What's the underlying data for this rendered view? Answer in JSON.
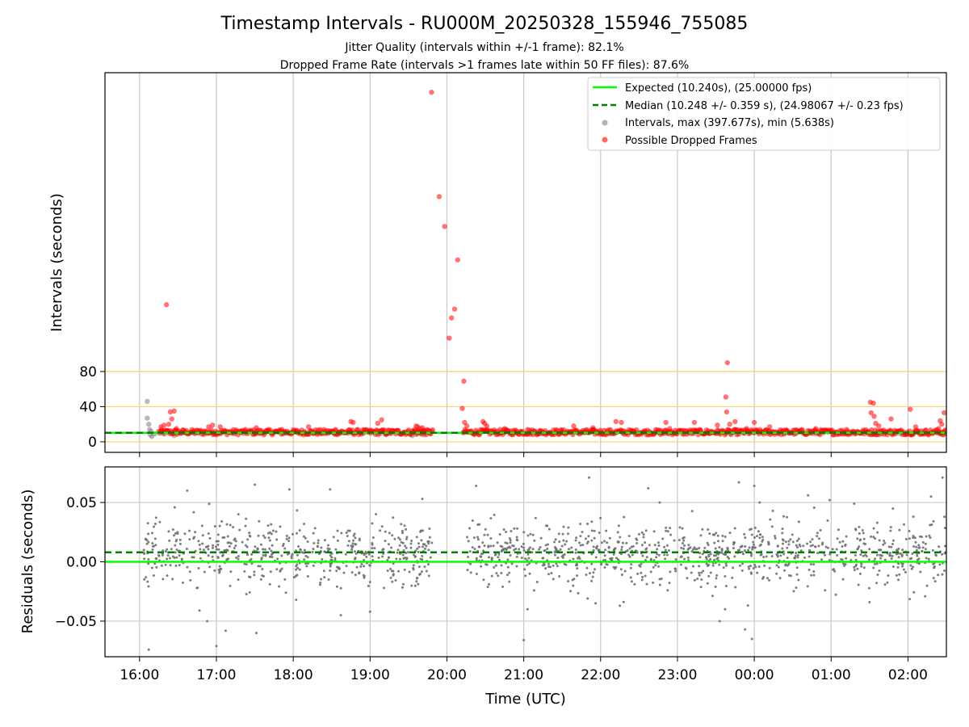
{
  "chart_data": [
    {
      "type": "scatter",
      "panel": "intervals",
      "title": "Timestamp Intervals - RU000M_20250328_155946_755085",
      "subtitle_lines": [
        "Jitter Quality (intervals within +/-1 frame): 82.1%",
        "Dropped Frame Rate (intervals >1 frames late within 50 FF files): 87.6%"
      ],
      "ylabel": "Intervals (seconds)",
      "xlim_hours": [
        15.55,
        26.5
      ],
      "ylim": [
        -12,
        420
      ],
      "yticks": [
        0,
        40,
        80
      ],
      "ytick_labels": [
        "0",
        "40",
        "80"
      ],
      "xticks_hours": [
        16,
        17,
        18,
        19,
        20,
        21,
        22,
        23,
        24,
        25,
        26
      ],
      "reference_lines": [
        0,
        40,
        80
      ],
      "reference_color": "#ffcf60",
      "grid": "vertical",
      "legend_position": "top-right",
      "series": [
        {
          "name": "Expected (10.240s), (25.00000 fps)",
          "kind": "hline",
          "value": 10.24,
          "color": "#00ff00",
          "style": "solid"
        },
        {
          "name": "Median (10.248 +/- 0.359 s), (24.98067 +/- 0.23 fps)",
          "kind": "hline",
          "value": 10.248,
          "color": "#008000",
          "style": "dashed"
        },
        {
          "name": "Intervals, max (397.677s), min (5.638s)",
          "kind": "points",
          "color": "#808080",
          "points": [
            [
              16.1,
              46
            ],
            [
              16.1,
              27
            ],
            [
              16.12,
              20
            ],
            [
              16.13,
              14
            ],
            [
              16.14,
              8
            ],
            [
              16.15,
              12
            ],
            [
              16.16,
              6
            ],
            [
              16.2,
              9
            ],
            [
              16.3,
              10
            ],
            [
              16.45,
              7
            ],
            [
              16.6,
              11
            ],
            [
              17.0,
              10
            ],
            [
              17.5,
              10
            ],
            [
              18.0,
              11
            ],
            [
              18.6,
              9
            ],
            [
              19.2,
              8
            ],
            [
              19.55,
              7
            ],
            [
              19.62,
              9
            ],
            [
              19.7,
              8
            ],
            [
              20.7,
              10
            ],
            [
              21.2,
              9
            ],
            [
              21.5,
              10
            ],
            [
              22.0,
              11
            ],
            [
              22.8,
              9
            ],
            [
              23.4,
              10
            ],
            [
              23.7,
              8
            ],
            [
              24.4,
              10
            ],
            [
              25.2,
              9
            ],
            [
              25.48,
              11
            ],
            [
              25.6,
              8
            ],
            [
              25.9,
              9
            ],
            [
              26.2,
              10
            ],
            [
              26.45,
              8
            ]
          ]
        },
        {
          "name": "Possible Dropped Frames",
          "kind": "points",
          "color": "#ff0000",
          "points": [
            [
              19.8,
              397.7
            ],
            [
              19.9,
              279
            ],
            [
              19.97,
              245
            ],
            [
              20.14,
              207
            ],
            [
              20.1,
              151
            ],
            [
              20.06,
              141
            ],
            [
              20.03,
              118
            ],
            [
              16.35,
              156
            ],
            [
              20.22,
              69
            ],
            [
              20.2,
              38
            ],
            [
              20.23,
              22
            ],
            [
              20.26,
              18
            ],
            [
              16.4,
              34
            ],
            [
              16.45,
              35
            ],
            [
              16.42,
              26
            ],
            [
              16.38,
              20
            ],
            [
              16.32,
              19
            ],
            [
              16.28,
              17
            ],
            [
              16.48,
              15
            ],
            [
              18.75,
              23
            ],
            [
              18.78,
              22
            ],
            [
              19.15,
              25
            ],
            [
              19.1,
              21
            ],
            [
              18.2,
              17
            ],
            [
              17.52,
              16
            ],
            [
              17.05,
              17
            ],
            [
              16.95,
              19
            ],
            [
              16.9,
              17
            ],
            [
              20.47,
              23
            ],
            [
              20.49,
              21
            ],
            [
              20.52,
              18
            ],
            [
              20.75,
              15
            ],
            [
              21.05,
              14
            ],
            [
              21.65,
              18
            ],
            [
              21.9,
              16
            ],
            [
              22.2,
              23
            ],
            [
              22.27,
              22
            ],
            [
              22.9,
              15
            ],
            [
              22.85,
              22
            ],
            [
              23.22,
              22
            ],
            [
              23.52,
              19
            ],
            [
              23.65,
              90
            ],
            [
              23.63,
              51
            ],
            [
              23.64,
              34
            ],
            [
              23.68,
              20
            ],
            [
              23.75,
              23
            ],
            [
              23.9,
              15
            ],
            [
              24.0,
              22
            ],
            [
              24.2,
              17
            ],
            [
              24.8,
              15
            ],
            [
              25.2,
              14
            ],
            [
              25.51,
              45
            ],
            [
              25.55,
              44
            ],
            [
              25.52,
              33
            ],
            [
              25.56,
              29
            ],
            [
              25.58,
              21
            ],
            [
              25.62,
              18
            ],
            [
              25.78,
              26
            ],
            [
              26.03,
              37
            ],
            [
              26.1,
              17
            ],
            [
              26.42,
              24
            ],
            [
              26.47,
              33
            ],
            [
              26.44,
              20
            ],
            [
              26.4,
              15
            ],
            [
              19.6,
              18
            ],
            [
              19.62,
              17
            ],
            [
              19.65,
              15
            ],
            [
              19.58,
              14
            ],
            [
              19.68,
              16
            ],
            [
              19.7,
              13
            ],
            [
              18.55,
              14
            ],
            [
              17.85,
              14
            ]
          ],
          "band": {
            "from": 16.25,
            "to": 26.5,
            "low": 8,
            "high": 14,
            "gap": [
              19.82,
              20.2
            ]
          }
        }
      ]
    },
    {
      "type": "scatter",
      "panel": "residuals",
      "xlabel": "Time (UTC)",
      "ylabel": "Residuals (seconds)",
      "xlim_hours": [
        15.55,
        26.5
      ],
      "ylim": [
        -0.08,
        0.08
      ],
      "yticks": [
        -0.05,
        0,
        0.05
      ],
      "ytick_labels": [
        "−0.05",
        "0.00",
        "0.05"
      ],
      "xticks_hours": [
        16,
        17,
        18,
        19,
        20,
        21,
        22,
        23,
        24,
        25,
        26
      ],
      "xtick_labels": [
        "16:00",
        "17:00",
        "18:00",
        "19:00",
        "20:00",
        "21:00",
        "22:00",
        "23:00",
        "00:00",
        "01:00",
        "02:00"
      ],
      "grid": "both",
      "series": [
        {
          "name": "",
          "kind": "hline",
          "value": 0,
          "color": "#00ff00",
          "style": "solid"
        },
        {
          "name": "",
          "kind": "hline",
          "value": 0.008,
          "color": "#008000",
          "style": "dashed"
        },
        {
          "name": "",
          "kind": "points",
          "color": "#707070",
          "points": [
            [
              16.12,
              -0.074
            ],
            [
              17.0,
              -0.071
            ],
            [
              17.12,
              -0.058
            ],
            [
              17.52,
              -0.06
            ],
            [
              16.88,
              -0.05
            ],
            [
              16.78,
              -0.041
            ],
            [
              16.62,
              0.06
            ],
            [
              17.5,
              0.065
            ],
            [
              17.95,
              0.061
            ],
            [
              18.48,
              0.061
            ],
            [
              19.68,
              0.053
            ],
            [
              20.38,
              0.064
            ],
            [
              21.0,
              -0.066
            ],
            [
              21.05,
              -0.04
            ],
            [
              21.85,
              0.071
            ],
            [
              22.25,
              -0.037
            ],
            [
              22.62,
              0.062
            ],
            [
              23.55,
              -0.05
            ],
            [
              23.62,
              -0.04
            ],
            [
              23.8,
              0.067
            ],
            [
              23.88,
              -0.057
            ],
            [
              23.97,
              -0.065
            ],
            [
              24.0,
              0.064
            ],
            [
              24.7,
              0.056
            ],
            [
              24.98,
              0.052
            ],
            [
              25.3,
              0.049
            ],
            [
              25.5,
              -0.034
            ],
            [
              26.3,
              0.055
            ],
            [
              26.45,
              0.071
            ],
            [
              19.0,
              -0.042
            ]
          ],
          "cloud": {
            "segments": [
              [
                16.05,
                19.82
              ],
              [
                20.25,
                26.5
              ]
            ],
            "sigma": 0.013,
            "center": 0.007,
            "count": 1500
          }
        }
      ]
    }
  ]
}
